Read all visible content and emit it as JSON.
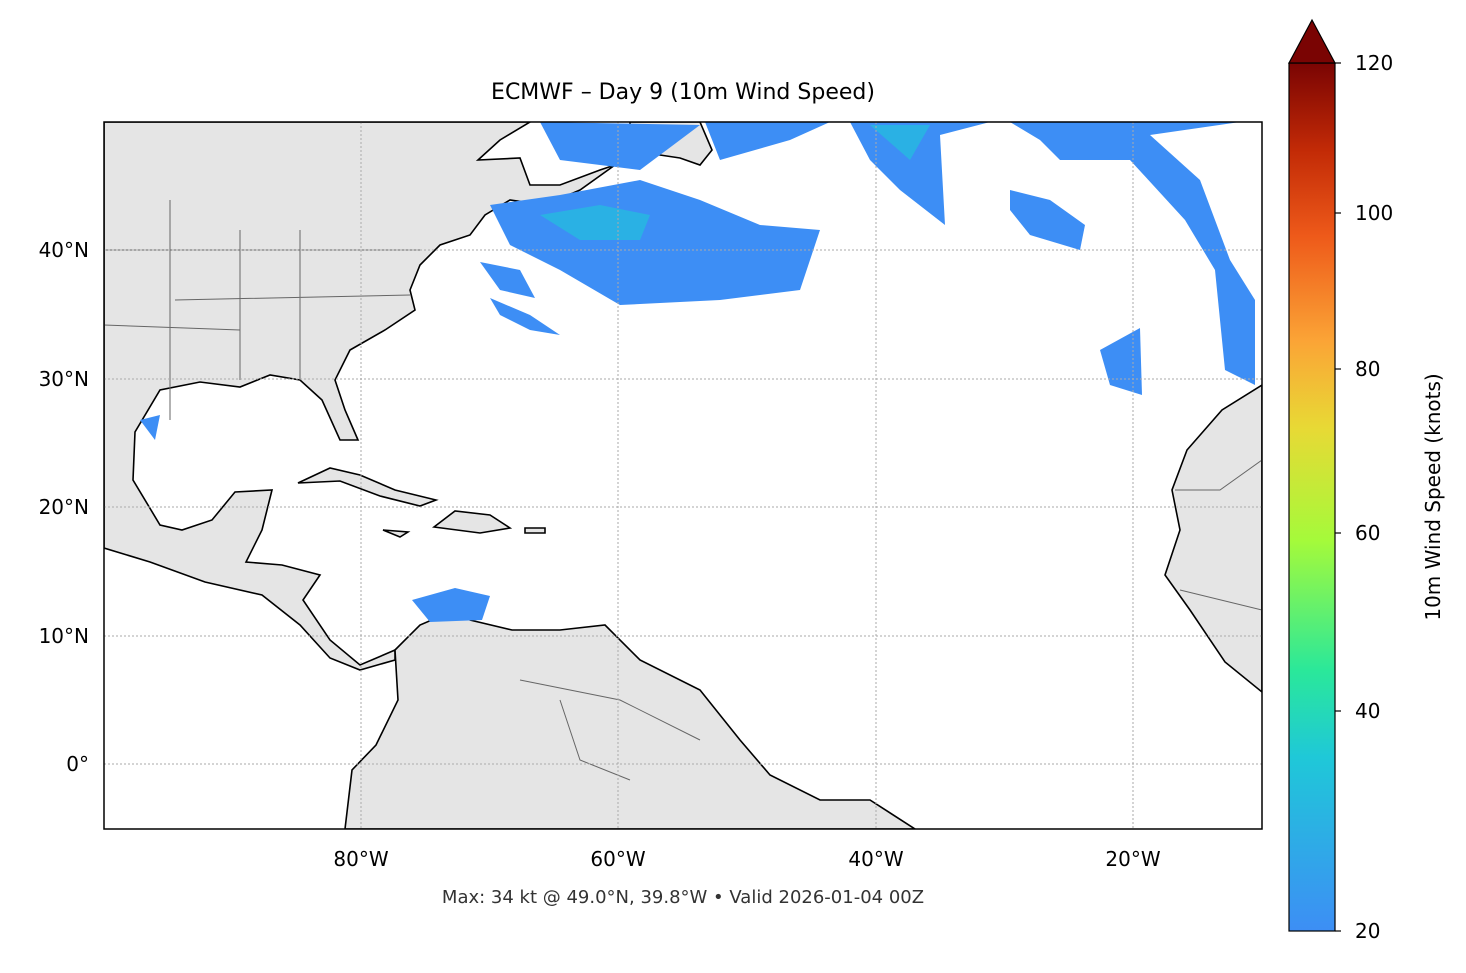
{
  "title": "ECMWF – Day 9 (10m Wind Speed)",
  "footer": "Max: 34 kt @ 49.0°N, 39.8°W • Valid 2026-01-04 00Z",
  "map": {
    "extent": {
      "lon": [
        -100,
        -10
      ],
      "lat": [
        -5,
        50
      ]
    },
    "lon_ticks": [
      {
        "value": -80,
        "label": "80°W"
      },
      {
        "value": -60,
        "label": "60°W"
      },
      {
        "value": -40,
        "label": "40°W"
      },
      {
        "value": -20,
        "label": "20°W"
      }
    ],
    "lat_ticks": [
      {
        "value": 40,
        "label": "40°N"
      },
      {
        "value": 30,
        "label": "30°N"
      },
      {
        "value": 20,
        "label": "20°N"
      },
      {
        "value": 10,
        "label": "10°N"
      },
      {
        "value": 0,
        "label": "0°"
      }
    ],
    "land_color": "#e5e5e5",
    "gridlines": true,
    "wind_color_low": "#3d8ef5",
    "wind_color_mid": "#22c0dd"
  },
  "colorbar": {
    "label": "10m Wind Speed (knots)",
    "ticks": [
      "20",
      "40",
      "60",
      "80",
      "100",
      "120"
    ],
    "range": [
      20,
      120
    ],
    "extend": "max",
    "colors": [
      "#3d8ef5",
      "#1fc8d8",
      "#2ae89a",
      "#a5fa3a",
      "#e8d935",
      "#fba436",
      "#ee5a1a",
      "#c22a06",
      "#7a0403"
    ]
  }
}
